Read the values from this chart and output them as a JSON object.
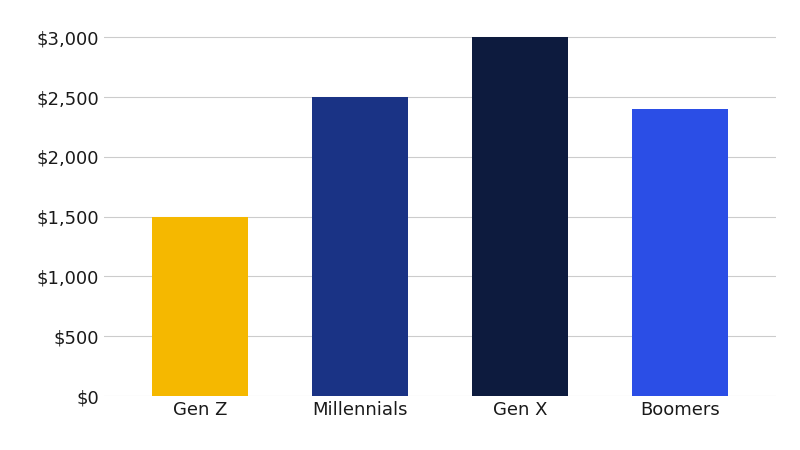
{
  "categories": [
    "Gen Z",
    "Millennials",
    "Gen X",
    "Boomers"
  ],
  "values": [
    1500,
    2500,
    3000,
    2400
  ],
  "bar_colors": [
    "#F5B800",
    "#1A3385",
    "#0D1B3E",
    "#2B4EE6"
  ],
  "background_color": "#ffffff",
  "ylim": [
    0,
    3200
  ],
  "yticks": [
    0,
    500,
    1000,
    1500,
    2000,
    2500,
    3000
  ],
  "tick_label_color": "#1a1a1a",
  "grid_color": "#cccccc",
  "bar_width": 0.6,
  "figsize": [
    8.0,
    4.5
  ],
  "dpi": 100
}
